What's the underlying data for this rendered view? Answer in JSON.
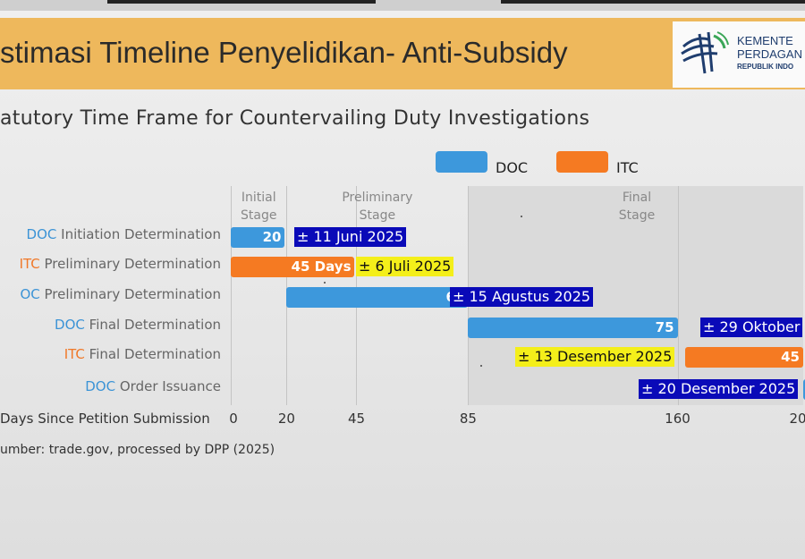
{
  "slide": {
    "title": "stimasi Timeline Penyelidikan- Anti-Subsidy",
    "logo_lines": [
      "KEMENTE",
      "PERDAGAN",
      "REPUBLIK INDO"
    ],
    "source": "umber: trade.gov, processed by DPP (2025)"
  },
  "colors": {
    "doc": "#3d98dc",
    "itc": "#f57a22",
    "banner": "#eeb85c"
  },
  "chart_data": {
    "type": "bar",
    "title": "atutory Time Frame for Countervailing Duty Investigations",
    "legend": [
      {
        "name": "DOC",
        "color": "#3d98dc"
      },
      {
        "name": "ITC",
        "color": "#f57a22"
      }
    ],
    "legend_position": "top-right",
    "xlabel": "Days Since Petition Submission",
    "x_ticks": [
      "0",
      "20",
      "45",
      "85",
      "160",
      "20"
    ],
    "xlim": [
      0,
      205
    ],
    "stages": [
      {
        "name": "Initial Stage",
        "lines": [
          "Initial",
          "Stage"
        ],
        "start": 0,
        "end": 20
      },
      {
        "name": "Preliminary Stage",
        "lines": [
          "Preliminary",
          "Stage"
        ],
        "start": 20,
        "end": 85
      },
      {
        "name": "Final Stage",
        "lines": [
          "Final",
          "Stage"
        ],
        "start": 85,
        "end": 205
      }
    ],
    "rows": [
      {
        "org": "DOC",
        "label": "Initiation Determination",
        "org_display": "DOC",
        "start": 0,
        "end": 20,
        "value_label": "20",
        "date": "± 11 Juni 2025",
        "date_style": "blue"
      },
      {
        "org": "ITC",
        "label": "Preliminary Determination",
        "org_display": "ITC",
        "start": 0,
        "end": 45,
        "value_label": "45 Days",
        "date": "± 6 Juli 2025",
        "date_style": "yellow"
      },
      {
        "org": "DOC",
        "label": "Preliminary Determination",
        "org_display": "OC",
        "start": 20,
        "end": 85,
        "value_label": "65",
        "date": "± 15 Agustus 2025",
        "date_style": "blue"
      },
      {
        "org": "DOC",
        "label": "Final Determination",
        "org_display": "DOC",
        "start": 85,
        "end": 160,
        "value_label": "75",
        "date": "± 29 Oktober",
        "date_style": "blue"
      },
      {
        "org": "ITC",
        "label": "Final Determination",
        "org_display": "ITC",
        "start": 160,
        "end": 205,
        "value_label": "45",
        "date": "± 13 Desember 2025",
        "date_style": "yellow"
      },
      {
        "org": "DOC",
        "label": "Order Issuance",
        "org_display": "DOC",
        "start": 205,
        "end": 207,
        "value_label": "",
        "date": "± 20 Desember 2025",
        "date_style": "blue"
      }
    ]
  }
}
